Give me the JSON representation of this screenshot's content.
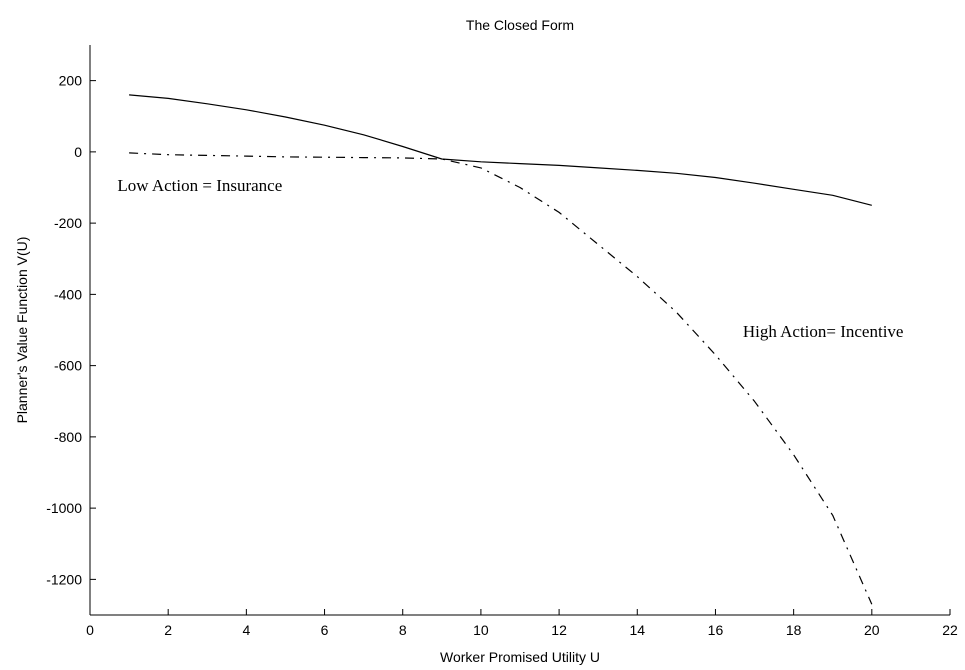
{
  "chart_data": {
    "type": "line",
    "title": "The Closed Form",
    "xlabel": "Worker Promised Utility U",
    "ylabel": "Planner's Value Function V(U)",
    "xlim": [
      0,
      22
    ],
    "ylim": [
      -1300,
      300
    ],
    "xticks": [
      0,
      2,
      4,
      6,
      8,
      10,
      12,
      14,
      16,
      18,
      20,
      22
    ],
    "yticks": [
      200,
      0,
      -200,
      -400,
      -600,
      -800,
      -1000,
      -1200
    ],
    "grid": false,
    "legend": "none",
    "series": [
      {
        "style": "solid",
        "color": "#000000",
        "x": [
          1,
          2,
          3,
          4,
          5,
          6,
          7,
          8,
          9,
          10,
          11,
          12,
          13,
          14,
          15,
          16,
          17,
          18,
          19,
          20
        ],
        "y": [
          160,
          150,
          135,
          118,
          98,
          75,
          48,
          15,
          -20,
          -28,
          -33,
          -38,
          -45,
          -52,
          -60,
          -72,
          -88,
          -105,
          -122,
          -150
        ]
      },
      {
        "style": "dashdot",
        "color": "#000000",
        "x": [
          1,
          2,
          3,
          4,
          5,
          6,
          7,
          8,
          9,
          10,
          11,
          12,
          13,
          14,
          15,
          16,
          17,
          18,
          19,
          20
        ],
        "y": [
          -3,
          -8,
          -10,
          -12,
          -14,
          -15,
          -16,
          -17,
          -20,
          -45,
          -100,
          -170,
          -260,
          -350,
          -450,
          -570,
          -700,
          -850,
          -1020,
          -1270
        ]
      }
    ],
    "annotations": [
      {
        "text": "Low Action = Insurance",
        "x": 0.7,
        "y": -110
      },
      {
        "text": "High Action= Incentive",
        "x": 16.7,
        "y": -520
      }
    ]
  }
}
